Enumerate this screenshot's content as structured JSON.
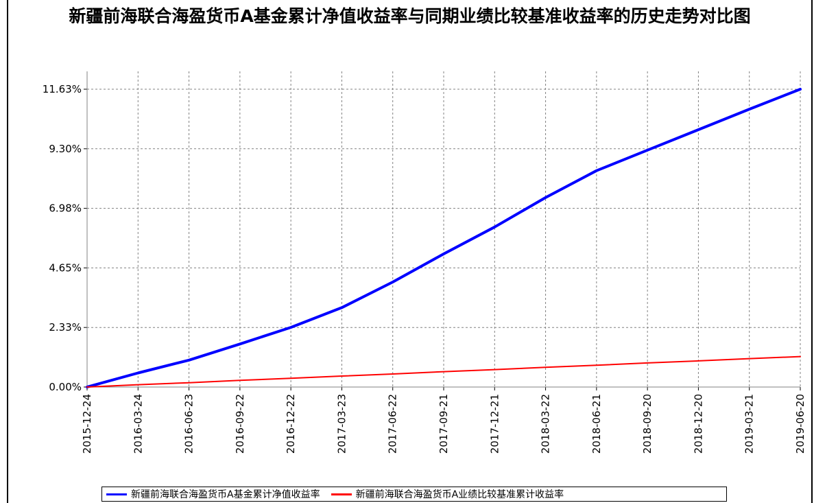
{
  "chart_data": {
    "type": "line",
    "title": "新疆前海联合海盈货币A基金累计净值收益率与同期业绩比较基准收益率的历史走势对比图",
    "x": [
      "2015-12-24",
      "2016-03-24",
      "2016-06-23",
      "2016-09-22",
      "2016-12-22",
      "2017-03-23",
      "2017-06-22",
      "2017-09-21",
      "2017-12-21",
      "2018-03-22",
      "2018-06-21",
      "2018-09-20",
      "2018-12-20",
      "2019-03-21",
      "2019-06-20"
    ],
    "x_ticks": [
      "2015-12-24",
      "2016-03-24",
      "2016-06-23",
      "2016-09-22",
      "2016-12-22",
      "2017-03-23",
      "2017-06-22",
      "2017-09-21",
      "2017-12-21",
      "2018-03-22",
      "2018-06-21",
      "2018-09-20",
      "2018-12-20",
      "2019-03-21",
      "2019-06-20"
    ],
    "y_ticks": [
      "0.00%",
      "2.33%",
      "4.65%",
      "6.98%",
      "9.30%",
      "11.63%"
    ],
    "ylim": [
      0,
      11.63
    ],
    "grid": true,
    "legend_position": "bottom",
    "series": [
      {
        "name": "新疆前海联合海盈货币A基金累计净值收益率",
        "color": "#0000ff",
        "values": [
          0.0,
          0.55,
          1.05,
          1.68,
          2.33,
          3.1,
          4.1,
          5.2,
          6.25,
          7.4,
          8.45,
          9.25,
          10.05,
          10.85,
          11.63
        ]
      },
      {
        "name": "新疆前海联合海盈货币A业绩比较基准累计收益率",
        "color": "#ff0000",
        "values": [
          0.0,
          0.09,
          0.17,
          0.26,
          0.34,
          0.43,
          0.51,
          0.6,
          0.68,
          0.77,
          0.85,
          0.94,
          1.02,
          1.11,
          1.19
        ]
      }
    ]
  }
}
